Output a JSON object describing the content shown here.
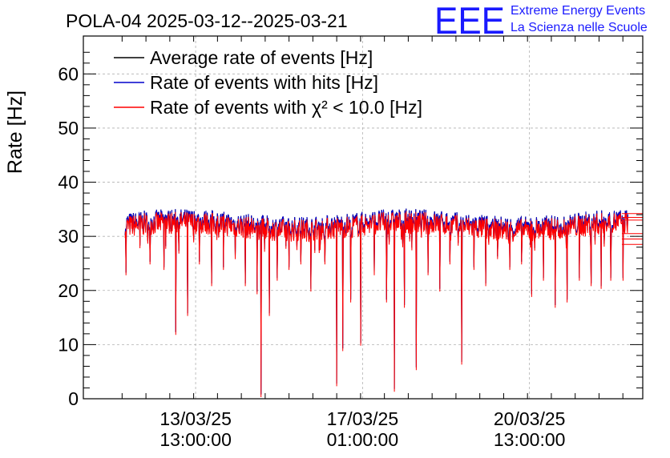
{
  "title": "POLA-04 2025-03-12--2025-03-21",
  "logo": {
    "mark": "EEE",
    "line1": "Extreme Energy Events",
    "line2": "La Scienza nelle Scuole",
    "color": "#1a1aff"
  },
  "chart_data": {
    "type": "line",
    "ylabel": "Rate [Hz]",
    "xlabel": "",
    "ylim": [
      0,
      67
    ],
    "yticks": [
      0,
      10,
      20,
      30,
      40,
      50,
      60
    ],
    "x_ticks": [
      {
        "date": "13/03/25",
        "time": "13:00:00",
        "t": 37
      },
      {
        "date": "17/03/25",
        "time": "01:00:00",
        "t": 121
      },
      {
        "date": "20/03/25",
        "time": "13:00:00",
        "t": 205
      }
    ],
    "x_range_hours": [
      -19.5,
      262
    ],
    "data_span_hours": [
      1.5,
      254.5
    ],
    "grid": true,
    "legend_position": "top-left",
    "series": [
      {
        "name": "Average rate of events [Hz]",
        "color": "#000000",
        "baseline": 32.5
      },
      {
        "name": "Rate of events with hits [Hz]",
        "color": "#0000cc",
        "baseline": 32.5
      },
      {
        "name": "Rate of events with χ² < 10.0 [Hz]",
        "color": "#ff0000",
        "baseline": 32.3
      }
    ],
    "dips": [
      {
        "t": 2,
        "v": 23
      },
      {
        "t": 9,
        "v": 28
      },
      {
        "t": 14,
        "v": 25
      },
      {
        "t": 21,
        "v": 24
      },
      {
        "t": 27,
        "v": 12
      },
      {
        "t": 33,
        "v": 15.5
      },
      {
        "t": 39,
        "v": 25
      },
      {
        "t": 45,
        "v": 21
      },
      {
        "t": 51,
        "v": 24
      },
      {
        "t": 57,
        "v": 26
      },
      {
        "t": 62,
        "v": 21
      },
      {
        "t": 68,
        "v": 19.5
      },
      {
        "t": 70,
        "v": 0.5
      },
      {
        "t": 74,
        "v": 15.5
      },
      {
        "t": 78,
        "v": 22
      },
      {
        "t": 84,
        "v": 24
      },
      {
        "t": 90,
        "v": 25
      },
      {
        "t": 95,
        "v": 20
      },
      {
        "t": 102,
        "v": 25
      },
      {
        "t": 108,
        "v": 2.5
      },
      {
        "t": 111,
        "v": 9
      },
      {
        "t": 115,
        "v": 18
      },
      {
        "t": 120,
        "v": 10
      },
      {
        "t": 127,
        "v": 23
      },
      {
        "t": 133,
        "v": 18
      },
      {
        "t": 137,
        "v": 1.5
      },
      {
        "t": 142,
        "v": 17
      },
      {
        "t": 148,
        "v": 5.5
      },
      {
        "t": 154,
        "v": 23
      },
      {
        "t": 160,
        "v": 20
      },
      {
        "t": 165,
        "v": 25
      },
      {
        "t": 171,
        "v": 6.5
      },
      {
        "t": 177,
        "v": 24
      },
      {
        "t": 183,
        "v": 21
      },
      {
        "t": 189,
        "v": 26
      },
      {
        "t": 195,
        "v": 24
      },
      {
        "t": 201,
        "v": 25
      },
      {
        "t": 206,
        "v": 19
      },
      {
        "t": 212,
        "v": 22
      },
      {
        "t": 218,
        "v": 17
      },
      {
        "t": 224,
        "v": 18
      },
      {
        "t": 230,
        "v": 22
      },
      {
        "t": 236,
        "v": 21
      },
      {
        "t": 241,
        "v": 20.5
      },
      {
        "t": 246,
        "v": 22
      },
      {
        "t": 252,
        "v": 22
      }
    ],
    "tail_levels": [
      34.2,
      33.5,
      33.0,
      30.5,
      29.5,
      28.5
    ]
  }
}
